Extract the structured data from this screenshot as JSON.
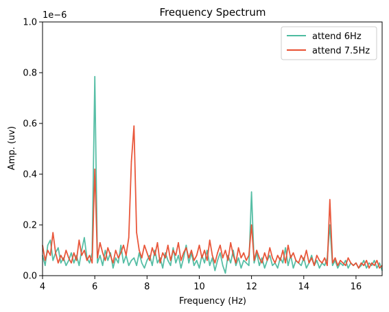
{
  "chart_data": {
    "type": "line",
    "title": "Frequency Spectrum",
    "xlabel": "Frequency (Hz)",
    "ylabel": "Amp. (uv)",
    "y_offset_text": "1e−6",
    "xlim": [
      4,
      17
    ],
    "ylim": [
      0,
      1.0
    ],
    "xticks": [
      4,
      6,
      8,
      10,
      12,
      14,
      16
    ],
    "yticks": [
      0.0,
      0.2,
      0.4,
      0.6,
      0.8,
      1.0
    ],
    "xtick_labels": [
      "4",
      "6",
      "8",
      "10",
      "12",
      "14",
      "16"
    ],
    "ytick_labels": [
      "0.0",
      "0.2",
      "0.4",
      "0.6",
      "0.8",
      "1.0"
    ],
    "grid": false,
    "legend_position": "top-right",
    "series": [
      {
        "name": "attend 6Hz",
        "color": "#4dbba0",
        "x": [
          4.0,
          4.1,
          4.2,
          4.3,
          4.4,
          4.5,
          4.6,
          4.7,
          4.8,
          4.9,
          5.0,
          5.1,
          5.2,
          5.3,
          5.4,
          5.5,
          5.6,
          5.7,
          5.8,
          5.9,
          6.0,
          6.1,
          6.2,
          6.3,
          6.4,
          6.5,
          6.6,
          6.7,
          6.8,
          6.9,
          7.0,
          7.1,
          7.2,
          7.3,
          7.4,
          7.5,
          7.6,
          7.7,
          7.8,
          7.9,
          8.0,
          8.1,
          8.2,
          8.3,
          8.4,
          8.5,
          8.6,
          8.7,
          8.8,
          8.9,
          9.0,
          9.1,
          9.2,
          9.3,
          9.4,
          9.5,
          9.6,
          9.7,
          9.8,
          9.9,
          10.0,
          10.1,
          10.2,
          10.3,
          10.4,
          10.5,
          10.6,
          10.7,
          10.8,
          10.9,
          11.0,
          11.1,
          11.2,
          11.3,
          11.4,
          11.5,
          11.6,
          11.7,
          11.8,
          11.9,
          12.0,
          12.1,
          12.2,
          12.3,
          12.4,
          12.5,
          12.6,
          12.7,
          12.8,
          12.9,
          13.0,
          13.1,
          13.2,
          13.3,
          13.4,
          13.5,
          13.6,
          13.7,
          13.8,
          13.9,
          14.0,
          14.1,
          14.2,
          14.3,
          14.4,
          14.5,
          14.6,
          14.7,
          14.8,
          14.9,
          15.0,
          15.1,
          15.2,
          15.3,
          15.4,
          15.5,
          15.6,
          15.7,
          15.8,
          15.9,
          16.0,
          16.1,
          16.2,
          16.3,
          16.4,
          16.5,
          16.6,
          16.7,
          16.8,
          16.9,
          17.0
        ],
        "values": [
          0.08,
          0.04,
          0.12,
          0.14,
          0.06,
          0.09,
          0.11,
          0.05,
          0.07,
          0.04,
          0.06,
          0.09,
          0.05,
          0.08,
          0.04,
          0.1,
          0.15,
          0.07,
          0.05,
          0.09,
          0.785,
          0.05,
          0.08,
          0.04,
          0.1,
          0.06,
          0.09,
          0.03,
          0.07,
          0.05,
          0.12,
          0.05,
          0.08,
          0.04,
          0.06,
          0.07,
          0.04,
          0.09,
          0.05,
          0.03,
          0.06,
          0.08,
          0.04,
          0.1,
          0.05,
          0.07,
          0.03,
          0.09,
          0.06,
          0.04,
          0.11,
          0.05,
          0.08,
          0.03,
          0.07,
          0.12,
          0.05,
          0.09,
          0.04,
          0.06,
          0.03,
          0.08,
          0.05,
          0.1,
          0.04,
          0.07,
          0.02,
          0.06,
          0.09,
          0.04,
          0.01,
          0.08,
          0.05,
          0.1,
          0.04,
          0.07,
          0.03,
          0.06,
          0.05,
          0.04,
          0.33,
          0.05,
          0.09,
          0.04,
          0.07,
          0.03,
          0.06,
          0.08,
          0.04,
          0.05,
          0.03,
          0.07,
          0.05,
          0.11,
          0.04,
          0.08,
          0.03,
          0.06,
          0.05,
          0.04,
          0.07,
          0.03,
          0.05,
          0.08,
          0.04,
          0.06,
          0.03,
          0.05,
          0.04,
          0.07,
          0.2,
          0.04,
          0.06,
          0.03,
          0.05,
          0.04,
          0.06,
          0.03,
          0.05,
          0.04,
          0.05,
          0.03,
          0.04,
          0.06,
          0.03,
          0.05,
          0.04,
          0.06,
          0.03,
          0.05,
          0.02
        ]
      },
      {
        "name": "attend 7.5Hz",
        "color": "#e84e30",
        "x": [
          4.0,
          4.1,
          4.2,
          4.3,
          4.4,
          4.5,
          4.6,
          4.7,
          4.8,
          4.9,
          5.0,
          5.1,
          5.2,
          5.3,
          5.4,
          5.5,
          5.6,
          5.7,
          5.8,
          5.9,
          6.0,
          6.1,
          6.2,
          6.3,
          6.4,
          6.5,
          6.6,
          6.7,
          6.8,
          6.9,
          7.0,
          7.1,
          7.2,
          7.3,
          7.4,
          7.5,
          7.6,
          7.7,
          7.8,
          7.9,
          8.0,
          8.1,
          8.2,
          8.3,
          8.4,
          8.5,
          8.6,
          8.7,
          8.8,
          8.9,
          9.0,
          9.1,
          9.2,
          9.3,
          9.4,
          9.5,
          9.6,
          9.7,
          9.8,
          9.9,
          10.0,
          10.1,
          10.2,
          10.3,
          10.4,
          10.5,
          10.6,
          10.7,
          10.8,
          10.9,
          11.0,
          11.1,
          11.2,
          11.3,
          11.4,
          11.5,
          11.6,
          11.7,
          11.8,
          11.9,
          12.0,
          12.1,
          12.2,
          12.3,
          12.4,
          12.5,
          12.6,
          12.7,
          12.8,
          12.9,
          13.0,
          13.1,
          13.2,
          13.3,
          13.4,
          13.5,
          13.6,
          13.7,
          13.8,
          13.9,
          14.0,
          14.1,
          14.2,
          14.3,
          14.4,
          14.5,
          14.6,
          14.7,
          14.8,
          14.9,
          15.0,
          15.1,
          15.2,
          15.3,
          15.4,
          15.5,
          15.6,
          15.7,
          15.8,
          15.9,
          16.0,
          16.1,
          16.2,
          16.3,
          16.4,
          16.5,
          16.6,
          16.7,
          16.8,
          16.9,
          17.0
        ],
        "values": [
          0.12,
          0.06,
          0.1,
          0.08,
          0.17,
          0.09,
          0.05,
          0.08,
          0.06,
          0.1,
          0.07,
          0.05,
          0.09,
          0.06,
          0.14,
          0.08,
          0.1,
          0.06,
          0.08,
          0.05,
          0.42,
          0.07,
          0.13,
          0.09,
          0.06,
          0.11,
          0.08,
          0.05,
          0.1,
          0.07,
          0.09,
          0.12,
          0.08,
          0.15,
          0.45,
          0.59,
          0.17,
          0.1,
          0.07,
          0.12,
          0.09,
          0.06,
          0.11,
          0.08,
          0.13,
          0.05,
          0.09,
          0.07,
          0.12,
          0.06,
          0.1,
          0.08,
          0.13,
          0.06,
          0.09,
          0.11,
          0.07,
          0.1,
          0.06,
          0.08,
          0.12,
          0.07,
          0.1,
          0.06,
          0.14,
          0.08,
          0.05,
          0.09,
          0.12,
          0.07,
          0.1,
          0.06,
          0.13,
          0.08,
          0.05,
          0.11,
          0.07,
          0.09,
          0.06,
          0.08,
          0.2,
          0.06,
          0.1,
          0.07,
          0.05,
          0.09,
          0.06,
          0.11,
          0.07,
          0.05,
          0.08,
          0.06,
          0.1,
          0.05,
          0.12,
          0.07,
          0.09,
          0.06,
          0.05,
          0.08,
          0.06,
          0.1,
          0.05,
          0.07,
          0.04,
          0.08,
          0.06,
          0.05,
          0.07,
          0.04,
          0.3,
          0.05,
          0.07,
          0.04,
          0.06,
          0.05,
          0.04,
          0.07,
          0.05,
          0.04,
          0.05,
          0.03,
          0.05,
          0.04,
          0.06,
          0.03,
          0.05,
          0.04,
          0.06,
          0.03,
          0.04
        ]
      }
    ]
  }
}
